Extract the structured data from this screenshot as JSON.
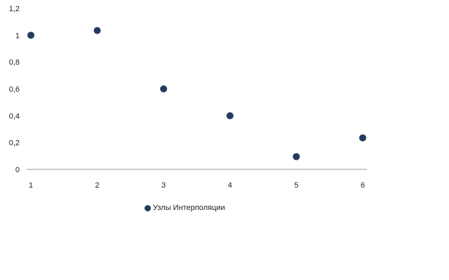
{
  "chart_data": {
    "type": "scatter",
    "title": "",
    "xlabel": "",
    "ylabel": "",
    "xlim": [
      1,
      6
    ],
    "ylim": [
      0,
      1.2
    ],
    "x_ticks": [
      "1",
      "2",
      "3",
      "4",
      "5",
      "6"
    ],
    "y_ticks": [
      "0",
      "0,2",
      "0,4",
      "0,6",
      "0,8",
      "1",
      "1,2"
    ],
    "grid": false,
    "legend_position": "bottom",
    "series": [
      {
        "name": "Узлы Интерполяции",
        "color": "#243B5E",
        "x": [
          1,
          2,
          3,
          4,
          5,
          6
        ],
        "y": [
          1.0,
          1.035,
          0.6,
          0.4,
          0.095,
          0.235
        ]
      }
    ]
  }
}
